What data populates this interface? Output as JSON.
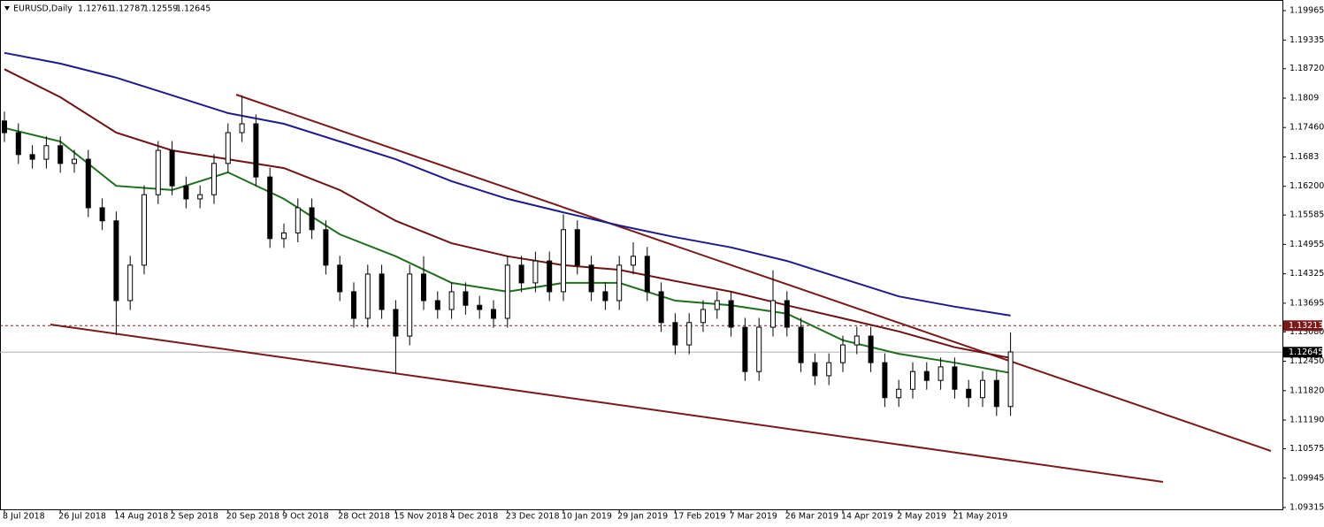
{
  "chart_data": {
    "type": "candlestick",
    "title": "EURUSD,Daily",
    "header_prices": [
      1.12761,
      1.12787,
      1.12559,
      1.12645
    ],
    "categories": [
      "8 Jul 2018",
      null,
      null,
      null,
      "26 Jul 2018",
      null,
      null,
      null,
      "14 Aug 2018",
      null,
      null,
      null,
      "2 Sep 2018",
      null,
      null,
      null,
      "20 Sep 2018",
      null,
      null,
      null,
      "9 Oct 2018",
      null,
      null,
      null,
      "28 Oct 2018",
      null,
      null,
      null,
      "15 Nov 2018",
      null,
      null,
      null,
      "4 Dec 2018",
      null,
      null,
      null,
      "23 Dec 2018",
      null,
      null,
      null,
      "10 Jan 2019",
      null,
      null,
      null,
      "29 Jan 2019",
      null,
      null,
      null,
      "17 Feb 2019",
      null,
      null,
      null,
      "7 Mar 2019",
      null,
      null,
      null,
      "26 Mar 2019",
      null,
      null,
      null,
      "14 Apr 2019",
      null,
      null,
      null,
      "2 May 2019",
      null,
      null,
      null,
      "21 May 2019",
      null,
      null,
      null,
      null
    ],
    "open": [
      1.176,
      1.1735,
      1.1688,
      1.1678,
      1.1707,
      1.1669,
      1.1678,
      1.1574,
      1.1546,
      1.1375,
      1.1451,
      1.1602,
      1.1697,
      1.1621,
      1.1593,
      1.1602,
      1.1669,
      1.1735,
      1.1754,
      1.164,
      1.1508,
      1.152,
      1.1574,
      1.1527,
      1.1451,
      1.1394,
      1.1337,
      1.1432,
      1.1356,
      1.1299,
      1.1432,
      1.1375,
      1.1356,
      1.1394,
      1.1365,
      1.1356,
      1.1337,
      1.1451,
      1.1413,
      1.146,
      1.1394,
      1.1527,
      1.1451,
      1.1394,
      1.1375,
      1.1451,
      1.147,
      1.1394,
      1.1328,
      1.128,
      1.1328,
      1.1356,
      1.1375,
      1.1318,
      1.1223,
      1.1318,
      1.1375,
      1.1318,
      1.1242,
      1.1214,
      1.1242,
      1.128,
      1.1299,
      1.1242,
      1.1167,
      1.1185,
      1.1223,
      1.1204,
      1.1233,
      1.1185,
      1.1167,
      1.1204,
      1.1148
    ],
    "high": [
      1.178,
      1.1755,
      1.1708,
      1.1727,
      1.1727,
      1.1698,
      1.1698,
      1.1594,
      1.1566,
      1.1471,
      1.1622,
      1.1717,
      1.1717,
      1.1641,
      1.1622,
      1.1689,
      1.1755,
      1.1815,
      1.1774,
      1.166,
      1.154,
      1.1594,
      1.1594,
      1.1547,
      1.1471,
      1.1414,
      1.1452,
      1.1452,
      1.1376,
      1.1452,
      1.147,
      1.1395,
      1.1414,
      1.1414,
      1.1385,
      1.1376,
      1.1471,
      1.1471,
      1.148,
      1.148,
      1.156,
      1.1547,
      1.1471,
      1.1414,
      1.1471,
      1.15,
      1.149,
      1.1414,
      1.1348,
      1.1348,
      1.1376,
      1.1395,
      1.1395,
      1.1338,
      1.1338,
      1.144,
      1.1395,
      1.1338,
      1.1262,
      1.1262,
      1.13,
      1.1319,
      1.1319,
      1.1262,
      1.1205,
      1.1243,
      1.1243,
      1.1253,
      1.1253,
      1.1205,
      1.1224,
      1.1224,
      1.1307
    ],
    "low": [
      1.1715,
      1.1668,
      1.1658,
      1.1658,
      1.1649,
      1.1649,
      1.1554,
      1.1526,
      1.1301,
      1.1355,
      1.1431,
      1.1582,
      1.1601,
      1.1573,
      1.1573,
      1.1582,
      1.1649,
      1.1715,
      1.162,
      1.1488,
      1.1488,
      1.15,
      1.1507,
      1.1431,
      1.1374,
      1.1317,
      1.1317,
      1.1336,
      1.1218,
      1.1279,
      1.1355,
      1.1336,
      1.1336,
      1.1345,
      1.1336,
      1.1317,
      1.1317,
      1.1393,
      1.1393,
      1.1374,
      1.1374,
      1.1431,
      1.1374,
      1.1355,
      1.1355,
      1.1431,
      1.1374,
      1.1308,
      1.126,
      1.126,
      1.1308,
      1.1336,
      1.1298,
      1.1203,
      1.1203,
      1.1298,
      1.1298,
      1.1222,
      1.1194,
      1.1194,
      1.1222,
      1.126,
      1.1222,
      1.1147,
      1.1147,
      1.1165,
      1.1184,
      1.1184,
      1.1165,
      1.1147,
      1.1147,
      1.1128,
      1.1128
    ],
    "close": [
      1.1735,
      1.1688,
      1.1678,
      1.1707,
      1.1669,
      1.1678,
      1.1574,
      1.1546,
      1.1375,
      1.1451,
      1.1602,
      1.1697,
      1.1621,
      1.1593,
      1.1602,
      1.1669,
      1.1735,
      1.1754,
      1.164,
      1.1508,
      1.152,
      1.1574,
      1.1527,
      1.1451,
      1.1394,
      1.1337,
      1.1432,
      1.1356,
      1.1299,
      1.1432,
      1.1375,
      1.1356,
      1.1394,
      1.1365,
      1.1356,
      1.1337,
      1.1451,
      1.1413,
      1.146,
      1.1394,
      1.1527,
      1.1451,
      1.1394,
      1.1375,
      1.1451,
      1.147,
      1.1394,
      1.1328,
      1.128,
      1.1328,
      1.1356,
      1.1375,
      1.1318,
      1.1223,
      1.1318,
      1.1375,
      1.1318,
      1.1242,
      1.1214,
      1.1242,
      1.128,
      1.1299,
      1.1242,
      1.1167,
      1.1185,
      1.1223,
      1.1204,
      1.1233,
      1.1185,
      1.1167,
      1.1204,
      1.1148,
      1.1265
    ],
    "series": [
      {
        "color": "#1c1c8c",
        "x": [
          0,
          4,
          8,
          12,
          16,
          20,
          24,
          28,
          32,
          36,
          40,
          44,
          48,
          52,
          56,
          60,
          64,
          68,
          72
        ],
        "values": [
          1.1906,
          1.1883,
          1.1853,
          1.1815,
          1.1777,
          1.1754,
          1.1716,
          1.1678,
          1.1631,
          1.1593,
          1.1564,
          1.1536,
          1.1511,
          1.1489,
          1.146,
          1.1422,
          1.1384,
          1.1362,
          1.1343
        ]
      },
      {
        "color": "#6e1212",
        "x": [
          0,
          4,
          8,
          12,
          16,
          20,
          24,
          28,
          32,
          36,
          40,
          44,
          48,
          52,
          56,
          60,
          64,
          68,
          72
        ],
        "values": [
          1.1871,
          1.1811,
          1.1735,
          1.1697,
          1.1678,
          1.1659,
          1.1612,
          1.1546,
          1.1498,
          1.147,
          1.1451,
          1.1441,
          1.1417,
          1.1394,
          1.1365,
          1.1337,
          1.1309,
          1.1275,
          1.1252
        ]
      },
      {
        "color": "#1e6e1e",
        "x": [
          0,
          4,
          8,
          12,
          16,
          20,
          24,
          28,
          32,
          36,
          40,
          44,
          48,
          52,
          56,
          60,
          64,
          68,
          72
        ],
        "values": [
          1.1745,
          1.1716,
          1.1621,
          1.1612,
          1.165,
          1.1593,
          1.1517,
          1.147,
          1.1413,
          1.1394,
          1.1413,
          1.1413,
          1.1375,
          1.1365,
          1.1347,
          1.129,
          1.1261,
          1.1242,
          1.122
        ]
      }
    ],
    "trendlines": [
      {
        "color": "#7a1a1a",
        "x": [
          16.58,
          90.63
        ],
        "values": [
          1.18165,
          1.10528
        ]
      },
      {
        "color": "#7a1a1a",
        "x": [
          3.29,
          82.91
        ],
        "values": [
          1.13238,
          1.09865
        ]
      }
    ],
    "price_lines": [
      {
        "value": 1.13213,
        "color": "#7a1a1a",
        "style": "dashed"
      },
      {
        "value": 1.12645,
        "color": "#000000",
        "style": "solid"
      }
    ],
    "ylim": [
      1.09277,
      1.20193
    ],
    "yticks": [
      1.19965,
      1.19335,
      {
        "value": 1.1872,
        "label": "1.18720"
      },
      1.1809,
      {
        "value": 1.1746,
        "label": "1.17460"
      },
      1.1683,
      {
        "value": 1.162,
        "label": "1.16200"
      },
      1.15585,
      1.14955,
      1.14325,
      1.13695,
      {
        "value": 1.1308,
        "label": "1.13080"
      },
      {
        "value": 1.1245,
        "label": "1.12450"
      },
      {
        "value": 1.1182,
        "label": "1.11820"
      },
      {
        "value": 1.1119,
        "label": "1.11190"
      },
      1.10575,
      1.09945,
      1.09315
    ]
  }
}
